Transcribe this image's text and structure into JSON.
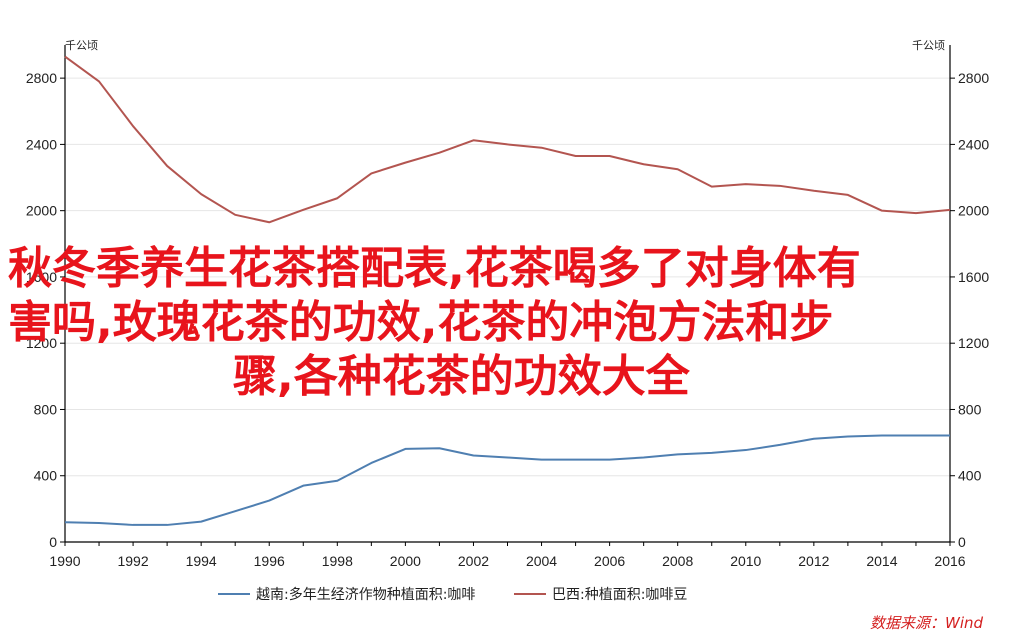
{
  "chart_data": {
    "type": "line",
    "x": [
      1990,
      1991,
      1992,
      1993,
      1994,
      1995,
      1996,
      1997,
      1998,
      1999,
      2000,
      2001,
      2002,
      2003,
      2004,
      2005,
      2006,
      2007,
      2008,
      2009,
      2010,
      2011,
      2012,
      2013,
      2014,
      2015,
      2016
    ],
    "x_ticks": [
      "1990",
      "1992",
      "1994",
      "1996",
      "1998",
      "2000",
      "2002",
      "2004",
      "2006",
      "2008",
      "2010",
      "2012",
      "2014",
      "2016"
    ],
    "y_ticks": [
      "0",
      "400",
      "800",
      "1200",
      "1600",
      "2000",
      "2400",
      "2800"
    ],
    "ylim": [
      0,
      3000
    ],
    "xlim": [
      1990,
      2016
    ],
    "unit_left": "千公顷",
    "unit_right": "千公顷",
    "grid": "horizontal",
    "legend_position": "bottom",
    "series": [
      {
        "name": "越南:多年生经济作物种植面积:咖啡",
        "color": "#4f7fb1",
        "values": [
          119,
          115,
          103,
          103,
          123,
          186,
          250,
          340,
          370,
          477,
          562,
          566,
          522,
          510,
          497,
          497,
          497,
          510,
          529,
          538,
          555,
          586,
          623,
          637,
          643,
          643,
          643
        ]
      },
      {
        "name": "巴西:种植面积:咖啡豆",
        "color": "#b35550",
        "values": [
          2930,
          2780,
          2510,
          2270,
          2100,
          1975,
          1930,
          2005,
          2075,
          2225,
          2290,
          2350,
          2425,
          2400,
          2380,
          2330,
          2330,
          2280,
          2250,
          2145,
          2160,
          2150,
          2120,
          2095,
          2000,
          1985,
          2005
        ]
      }
    ]
  },
  "overlay": {
    "line1": "秋冬季养生花茶搭配表,花茶喝多了对身体有",
    "line2": "害吗,玫瑰花茶的功效,花茶的冲泡方法和步",
    "line3": "骤,各种花茶的功效大全",
    "color": "#e8141c"
  },
  "source": "数据来源：Wind"
}
